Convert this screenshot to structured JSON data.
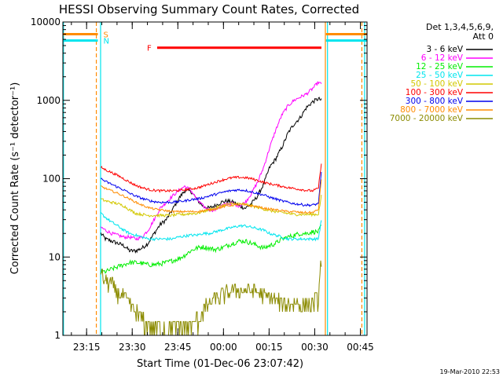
{
  "chart_data": {
    "type": "line",
    "title": "HESSI Observing Summary Count Rates, Corrected",
    "xlabel": "Start Time (01-Dec-06 23:07:42)",
    "ylabel": "Corrected Count Rate (s⁻¹ detector⁻¹)",
    "y_scale": "log",
    "ylim": [
      1,
      10000
    ],
    "xlim_minutes_from_start": [
      0,
      100
    ],
    "x_ticks": [
      {
        "label": "23:15",
        "t": 7.8
      },
      {
        "label": "23:30",
        "t": 22.8
      },
      {
        "label": "23:45",
        "t": 37.8
      },
      {
        "label": "00:00",
        "t": 52.8
      },
      {
        "label": "00:15",
        "t": 67.8
      },
      {
        "label": "00:30",
        "t": 82.8
      },
      {
        "label": "00:45",
        "t": 97.8
      }
    ],
    "y_ticks": [
      {
        "label": "1",
        "v": 1
      },
      {
        "label": "10",
        "v": 10
      },
      {
        "label": "100",
        "v": 100
      },
      {
        "label": "1000",
        "v": 1000
      },
      {
        "label": "10000",
        "v": 10000
      }
    ],
    "legend": {
      "header_line1": "Det 1,3,4,5,6,9,",
      "header_line2": "Att 0",
      "placement": "right"
    },
    "flags": [
      {
        "label": "S",
        "color": "#ff8c00",
        "segments": [
          [
            0,
            11.5
          ],
          [
            86.5,
            100
          ]
        ],
        "value": 7000
      },
      {
        "label": "N",
        "color": "#00e5ee",
        "segments": [
          [
            0,
            11.5
          ],
          [
            86.5,
            100
          ]
        ],
        "value": 5800
      },
      {
        "label": "F",
        "color": "#ff0000",
        "segments": [
          [
            31,
            85
          ]
        ],
        "value": 4700
      }
    ],
    "vertical_lines": [
      {
        "color": "#00e5ee",
        "t": 0.2,
        "style": "solid"
      },
      {
        "color": "#ff8c00",
        "t": 11.0,
        "style": "dashed"
      },
      {
        "color": "#00e5ee",
        "t": 12.4,
        "style": "solid"
      },
      {
        "color": "#ff8c00",
        "t": 86.3,
        "style": "solid"
      },
      {
        "color": "#00e5ee",
        "t": 87.0,
        "style": "solid"
      },
      {
        "color": "#ff8c00",
        "t": 98.3,
        "style": "dashed"
      },
      {
        "color": "#00e5ee",
        "t": 99.2,
        "style": "solid"
      }
    ],
    "x": [
      12.5,
      14,
      16,
      18,
      20,
      22,
      24,
      26,
      28,
      30,
      32,
      34,
      36,
      38,
      40,
      42,
      44,
      46,
      48,
      50,
      52,
      54,
      56,
      58,
      60,
      62,
      64,
      66,
      68,
      70,
      72,
      74,
      76,
      78,
      80,
      82,
      84,
      85
    ],
    "series": [
      {
        "name": "3 - 6 keV",
        "color": "#000000",
        "noise": 0.06,
        "values": [
          20,
          17,
          16,
          15,
          14,
          12,
          12,
          13,
          15,
          20,
          26,
          30,
          40,
          55,
          70,
          70,
          55,
          45,
          42,
          45,
          50,
          52,
          50,
          45,
          42,
          48,
          60,
          85,
          140,
          180,
          250,
          380,
          500,
          600,
          800,
          950,
          1050,
          1000
        ]
      },
      {
        "name": "6 - 12 keV",
        "color": "#ff00ff",
        "noise": 0.05,
        "values": [
          24,
          22,
          20,
          19,
          18,
          18,
          17,
          18,
          22,
          30,
          42,
          50,
          60,
          70,
          80,
          72,
          55,
          45,
          40,
          40,
          45,
          48,
          48,
          45,
          50,
          65,
          90,
          140,
          250,
          420,
          650,
          850,
          1000,
          1100,
          1200,
          1400,
          1700,
          1600
        ]
      },
      {
        "name": "12 - 25 keV",
        "color": "#00ee00",
        "noise": 0.07,
        "values": [
          6.5,
          6.5,
          7,
          7.5,
          8,
          8.5,
          8.5,
          8.3,
          8.0,
          8.0,
          8.2,
          8.5,
          9,
          9.5,
          10.5,
          12,
          13,
          13.5,
          13,
          12.5,
          13,
          14,
          15,
          16,
          16,
          15,
          14,
          13,
          14,
          15,
          17,
          18,
          19,
          20,
          20,
          21,
          21,
          25
        ]
      },
      {
        "name": "25 - 50 keV",
        "color": "#00e5ee",
        "noise": 0.04,
        "values": [
          36,
          32,
          28,
          25,
          22,
          20,
          19,
          18,
          17,
          17,
          17,
          17,
          17,
          18,
          18.5,
          19,
          19,
          20,
          20,
          21,
          22,
          23,
          24,
          25,
          25,
          24,
          23,
          22,
          20,
          19,
          18,
          17,
          17,
          17,
          17,
          17,
          17,
          30
        ]
      },
      {
        "name": "50 - 100 keV",
        "color": "#d2c800",
        "noise": 0.04,
        "values": [
          55,
          52,
          50,
          48,
          45,
          40,
          36,
          35,
          34,
          34,
          34,
          34,
          34,
          35,
          35,
          36,
          36,
          38,
          40,
          42,
          45,
          47,
          48,
          48,
          47,
          45,
          43,
          41,
          39,
          38,
          37,
          36,
          35,
          35,
          35,
          35,
          35,
          60
        ]
      },
      {
        "name": "100 - 300 keV",
        "color": "#ff0000",
        "noise": 0.035,
        "values": [
          140,
          130,
          120,
          110,
          100,
          90,
          82,
          77,
          73,
          71,
          70,
          70,
          70,
          71,
          72,
          74,
          76,
          80,
          85,
          90,
          95,
          100,
          103,
          104,
          103,
          100,
          95,
          90,
          86,
          83,
          80,
          77,
          75,
          73,
          71,
          70,
          75,
          160
        ]
      },
      {
        "name": "300 - 800 keV",
        "color": "#0000ee",
        "noise": 0.035,
        "values": [
          100,
          92,
          85,
          78,
          72,
          65,
          60,
          56,
          53,
          51,
          50,
          50,
          50,
          51,
          52,
          54,
          55,
          57,
          60,
          63,
          66,
          69,
          71,
          72,
          71,
          68,
          65,
          62,
          58,
          55,
          52,
          50,
          48,
          47,
          46,
          46,
          48,
          120
        ]
      },
      {
        "name": "800 - 7000 keV",
        "color": "#ff8c00",
        "noise": 0.03,
        "values": [
          80,
          75,
          70,
          65,
          60,
          55,
          50,
          46,
          43,
          41,
          40,
          39,
          38,
          38,
          38,
          38,
          38,
          39,
          40,
          41,
          43,
          45,
          46,
          47,
          46,
          45,
          44,
          42,
          41,
          40,
          39,
          38,
          38,
          37,
          37,
          37,
          40,
          100
        ]
      },
      {
        "name": "7000 - 20000 keV",
        "color": "#8b8b00",
        "noise": 0.25,
        "quantized": true,
        "values": [
          6.0,
          5.0,
          4.5,
          3.5,
          3.0,
          2.5,
          2.0,
          1.6,
          1.4,
          1.3,
          1.2,
          1.2,
          1.2,
          1.2,
          1.3,
          1.3,
          1.5,
          2.0,
          2.5,
          3.0,
          3.2,
          3.5,
          3.7,
          3.8,
          3.8,
          3.7,
          3.5,
          3.2,
          3.0,
          2.8,
          2.6,
          2.5,
          2.5,
          2.5,
          2.5,
          2.5,
          3.0,
          10.0
        ]
      }
    ],
    "grid": false
  },
  "footer": {
    "timestamp": "19-Mar-2010 22:53"
  }
}
